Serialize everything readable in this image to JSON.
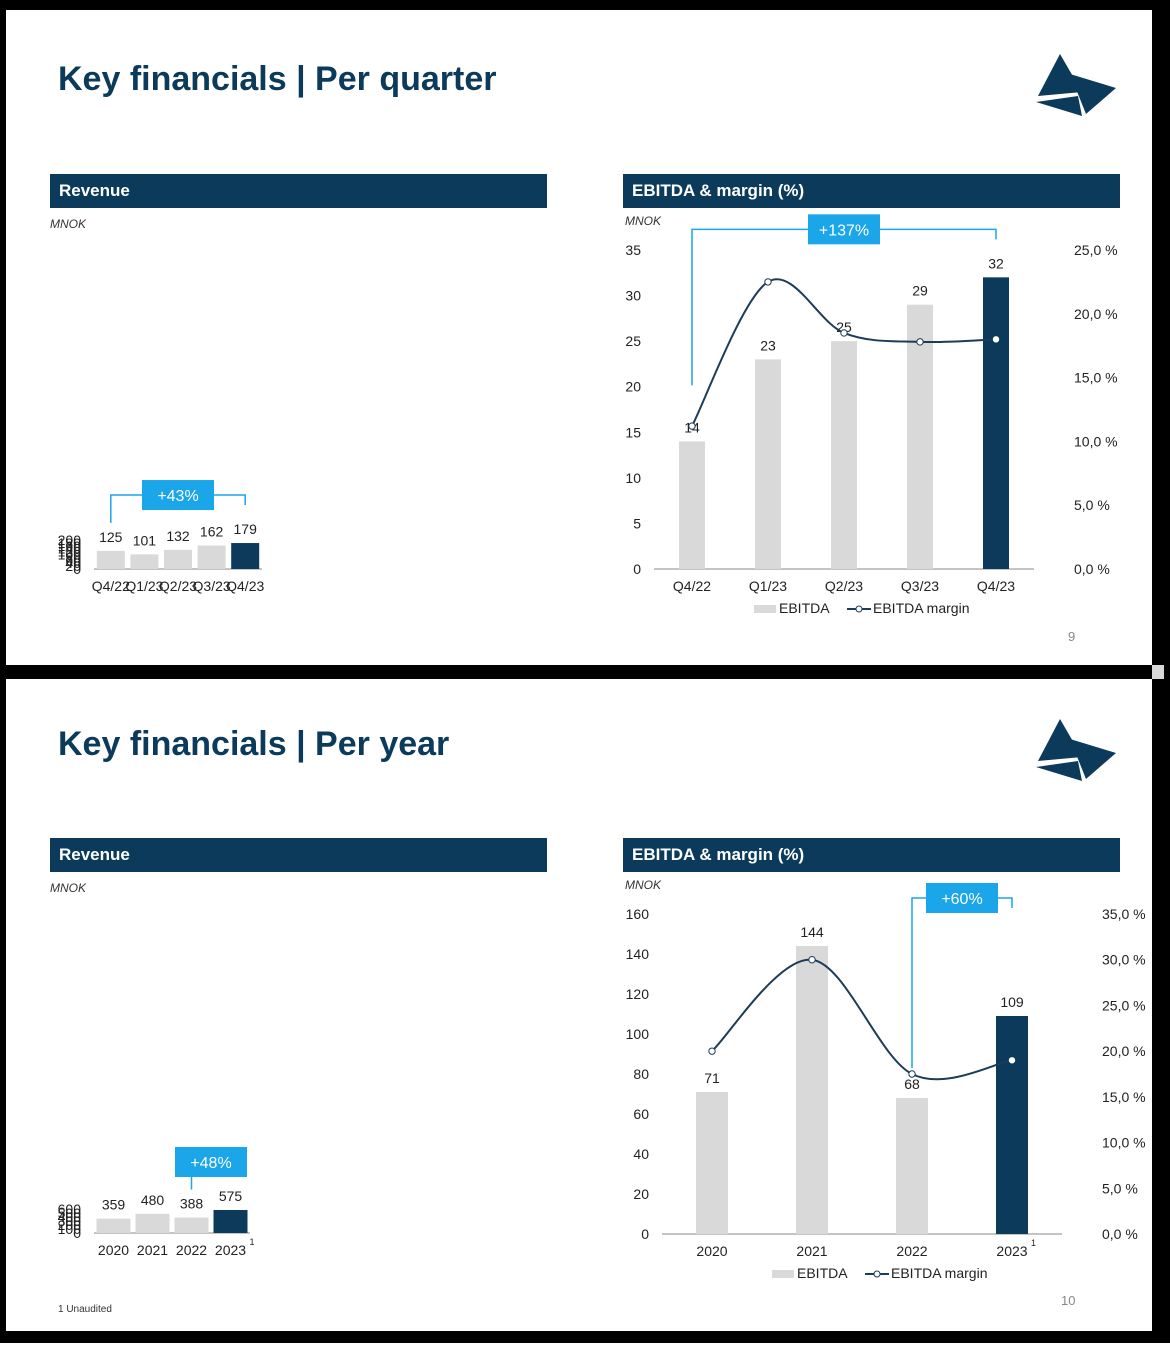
{
  "colors": {
    "navy": "#0b3a5a",
    "bar_grey": "#d9d9d9",
    "callout": "#1aa6e8",
    "line": "#1d3c58",
    "axis": "#888888",
    "text": "#222222"
  },
  "slide1": {
    "title": "Key financials | Per quarter",
    "page_number": "9",
    "revenue": {
      "header": "Revenue",
      "unit": "MNOK",
      "callout": "+43%",
      "chart_data": {
        "type": "bar",
        "categories": [
          "Q4/22",
          "Q1/23",
          "Q2/23",
          "Q3/23",
          "Q4/23"
        ],
        "values": [
          125,
          101,
          132,
          162,
          179
        ],
        "highlight_index": 4,
        "ylim": [
          0,
          200
        ],
        "yticks": [
          "0",
          "20",
          "40",
          "60",
          "80",
          "100",
          "120",
          "140",
          "160",
          "180",
          "200"
        ]
      }
    },
    "ebitda": {
      "header": "EBITDA & margin (%)",
      "unit": "MNOK",
      "callout": "+137%",
      "legend": {
        "bars": "EBITDA",
        "line": "EBITDA margin"
      },
      "chart_data": {
        "type": "bar+line",
        "categories": [
          "Q4/22",
          "Q1/23",
          "Q2/23",
          "Q3/23",
          "Q4/23"
        ],
        "values": [
          14,
          23,
          25,
          29,
          32
        ],
        "value_labels": [
          "14",
          "23",
          "25",
          "29",
          "32"
        ],
        "margin_pct": [
          11.2,
          22.5,
          18.5,
          17.8,
          18.0
        ],
        "highlight_index": 4,
        "ylim": [
          0,
          35
        ],
        "yticks": [
          "0",
          "5",
          "10",
          "15",
          "20",
          "25",
          "30",
          "35"
        ],
        "y2lim": [
          0,
          25
        ],
        "y2ticks": [
          "0,0 %",
          "5,0 %",
          "10,0 %",
          "15,0 %",
          "20,0 %",
          "25,0 %"
        ]
      }
    }
  },
  "slide2": {
    "title": "Key financials | Per year",
    "page_number": "10",
    "footnote": "1 Unaudited",
    "revenue": {
      "header": "Revenue",
      "unit": "MNOK",
      "callout": "+48%",
      "chart_data": {
        "type": "bar",
        "categories": [
          "2020",
          "2021",
          "2022",
          "2023"
        ],
        "category_superscripts": [
          "",
          "",
          "",
          "1"
        ],
        "values": [
          359,
          480,
          388,
          575
        ],
        "highlight_index": 3,
        "ylim": [
          0,
          600
        ],
        "yticks": [
          "0",
          "100",
          "200",
          "300",
          "400",
          "500",
          "600"
        ]
      }
    },
    "ebitda": {
      "header": "EBITDA & margin (%)",
      "unit": "MNOK",
      "callout": "+60%",
      "legend": {
        "bars": "EBITDA",
        "line": "EBITDA margin"
      },
      "chart_data": {
        "type": "bar+line",
        "categories": [
          "2020",
          "2021",
          "2022",
          "2023"
        ],
        "category_superscripts": [
          "",
          "",
          "",
          "1"
        ],
        "values": [
          71,
          144,
          68,
          109
        ],
        "value_labels": [
          "71",
          "144",
          "68",
          "109"
        ],
        "margin_pct": [
          20.0,
          30.0,
          17.5,
          19.0
        ],
        "highlight_index": 3,
        "ylim": [
          0,
          160
        ],
        "yticks": [
          "0",
          "20",
          "40",
          "60",
          "80",
          "100",
          "120",
          "140",
          "160"
        ],
        "y2lim": [
          0,
          35
        ],
        "y2ticks": [
          "0,0 %",
          "5,0 %",
          "10,0 %",
          "15,0 %",
          "20,0 %",
          "25,0 %",
          "30,0 %",
          "35,0 %"
        ]
      }
    }
  }
}
